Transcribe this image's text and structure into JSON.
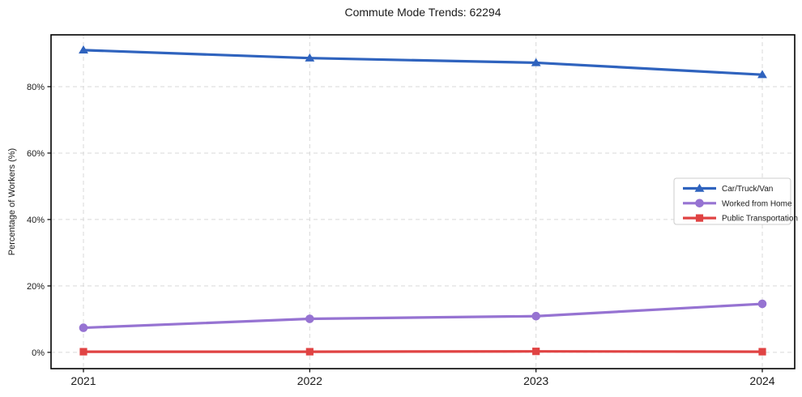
{
  "chart_data": {
    "type": "line",
    "title": "Commute Mode Trends: 62294",
    "xlabel": "",
    "ylabel": "Percentage of Workers (%)",
    "categories": [
      "2021",
      "2022",
      "2023",
      "2024"
    ],
    "yticks": [
      0,
      20,
      40,
      60,
      80
    ],
    "ytick_labels": [
      "0%",
      "20%",
      "40%",
      "60%",
      "80%"
    ],
    "ylim": [
      -4.9,
      95.6
    ],
    "grid": "dashed both axes",
    "legend_position": "center right",
    "series": [
      {
        "name": "Car/Truck/Van",
        "color": "#2f63be",
        "marker": "triangle",
        "values": [
          91.0,
          88.6,
          87.2,
          83.6
        ]
      },
      {
        "name": "Worked from Home",
        "color": "#9673d2",
        "marker": "circle",
        "values": [
          7.4,
          10.1,
          10.9,
          14.6
        ]
      },
      {
        "name": "Public Transportation",
        "color": "#e04343",
        "marker": "square",
        "values": [
          0.2,
          0.2,
          0.3,
          0.2
        ]
      }
    ],
    "colors": {
      "grid": "#d9d9d9",
      "frame": "#000000",
      "text": "#1a1a1a",
      "legend_border": "#cccccc",
      "legend_fill": "#ffffff"
    }
  }
}
